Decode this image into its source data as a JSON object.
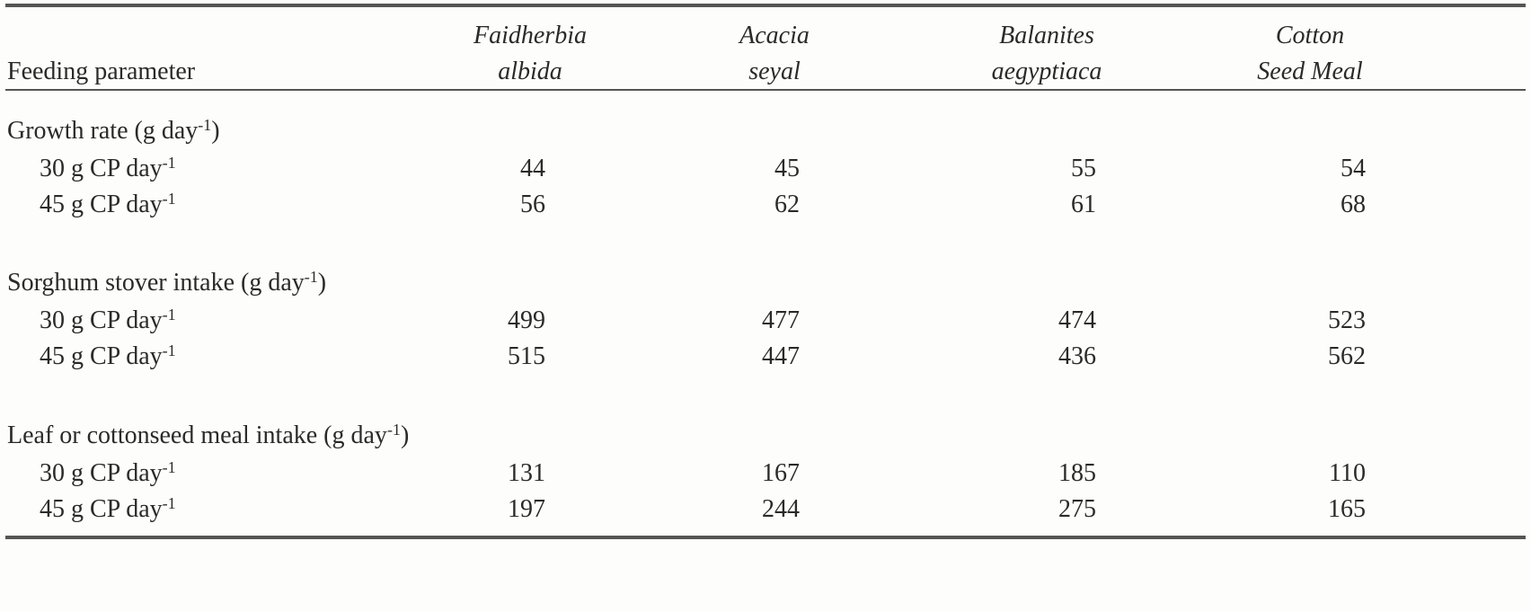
{
  "table": {
    "columns": [
      [
        "Feeding parameter"
      ],
      [
        "Faidherbia",
        "albida"
      ],
      [
        "Acacia",
        "seyal"
      ],
      [
        "Balanites",
        "aegyptiaca"
      ],
      [
        "Cotton",
        "Seed Meal"
      ]
    ],
    "groups": [
      {
        "label": [
          "Growth rate (g day",
          "-1",
          ")"
        ],
        "rows": [
          {
            "label": [
              "30 g CP day",
              "-1"
            ],
            "values": [
              44,
              45,
              55,
              54
            ]
          },
          {
            "label": [
              "45 g CP day",
              "-1"
            ],
            "values": [
              56,
              62,
              61,
              68
            ]
          }
        ]
      },
      {
        "label": [
          "Sorghum stover intake (g day",
          "-1",
          ")"
        ],
        "rows": [
          {
            "label": [
              "30 g CP day",
              "-1"
            ],
            "values": [
              499,
              477,
              474,
              523
            ]
          },
          {
            "label": [
              "45 g CP day",
              "-1"
            ],
            "values": [
              515,
              447,
              436,
              562
            ]
          }
        ]
      },
      {
        "label": [
          "Leaf or cottonseed meal intake (g day",
          "-1",
          ")"
        ],
        "rows": [
          {
            "label": [
              "30 g CP day",
              "-1"
            ],
            "values": [
              131,
              167,
              185,
              110
            ]
          },
          {
            "label": [
              "45 g CP day",
              "-1"
            ],
            "values": [
              197,
              244,
              275,
              165
            ]
          }
        ]
      }
    ]
  }
}
